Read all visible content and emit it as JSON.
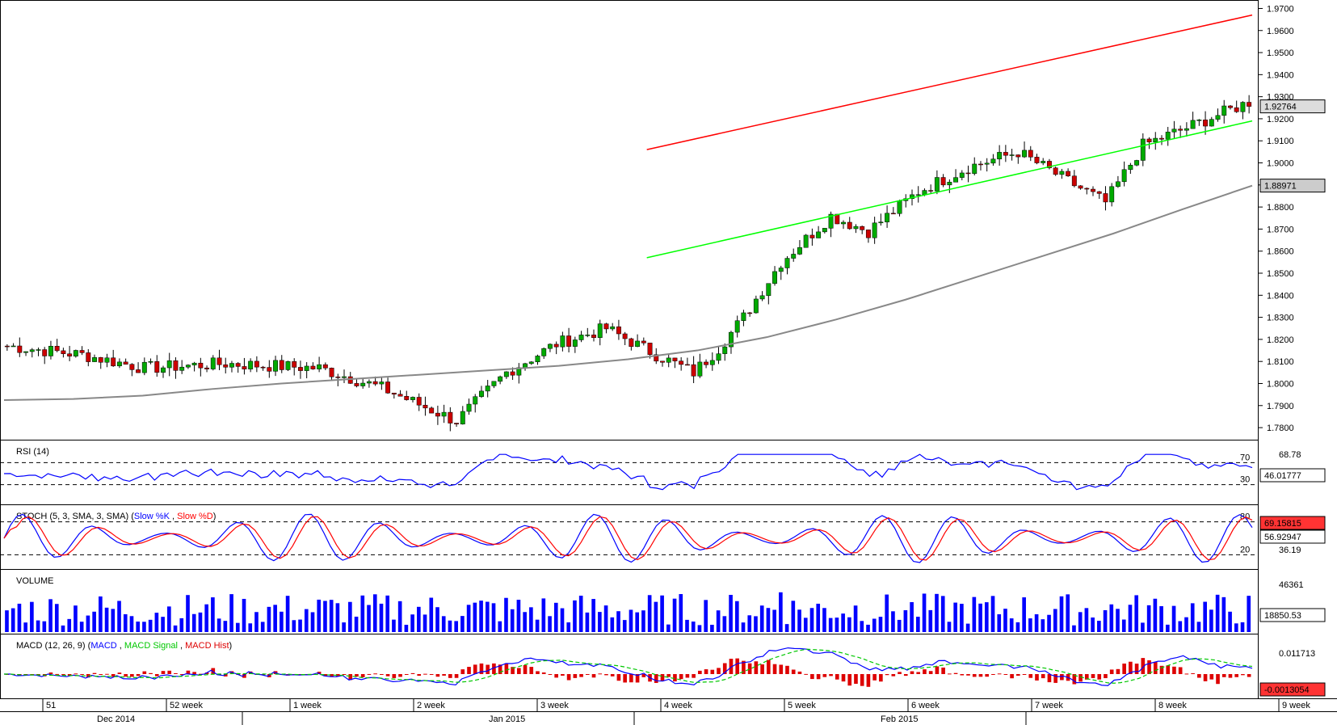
{
  "chart_data": {
    "type": "candlestick",
    "y_axis_ticks": [
      "1.9700",
      "1.9600",
      "1.9500",
      "1.9400",
      "1.9300",
      "1.9200",
      "1.9100",
      "1.9000",
      "1.8900",
      "1.8800",
      "1.8700",
      "1.8600",
      "1.8500",
      "1.8400",
      "1.8300",
      "1.8200",
      "1.8100",
      "1.8000",
      "1.7900",
      "1.7800"
    ],
    "ylim": [
      1.776,
      1.972
    ],
    "price": {
      "start": 1.817,
      "n": 200,
      "seed": 7,
      "waypoints": [
        [
          0,
          1.817
        ],
        [
          12,
          1.813
        ],
        [
          22,
          1.807
        ],
        [
          35,
          1.809
        ],
        [
          50,
          1.807
        ],
        [
          60,
          1.798
        ],
        [
          68,
          1.788
        ],
        [
          72,
          1.783
        ],
        [
          80,
          1.805
        ],
        [
          88,
          1.818
        ],
        [
          96,
          1.825
        ],
        [
          104,
          1.813
        ],
        [
          110,
          1.805
        ],
        [
          114,
          1.816
        ],
        [
          118,
          1.83
        ],
        [
          124,
          1.855
        ],
        [
          132,
          1.876
        ],
        [
          138,
          1.869
        ],
        [
          146,
          1.887
        ],
        [
          154,
          1.898
        ],
        [
          162,
          1.905
        ],
        [
          168,
          1.895
        ],
        [
          176,
          1.882
        ],
        [
          182,
          1.908
        ],
        [
          190,
          1.917
        ],
        [
          199,
          1.9276
        ]
      ]
    },
    "current_price_label": "1.92764",
    "ma_label": "1.88971",
    "ma_values": [
      1.7925,
      1.793,
      1.7945,
      1.7975,
      1.8,
      1.802,
      1.804,
      1.806,
      1.808,
      1.811,
      1.815,
      1.821,
      1.829,
      1.838,
      1.848,
      1.858,
      1.868,
      1.879,
      1.8897
    ],
    "channel": {
      "upper": {
        "x": [
          0.515,
          1.0
        ],
        "y": [
          1.906,
          1.967
        ],
        "color": "#FF0000"
      },
      "lower": {
        "x": [
          0.515,
          1.0
        ],
        "y": [
          1.857,
          1.919
        ],
        "color": "#00FF00"
      }
    },
    "x_axis": {
      "week_labels": [
        "51",
        "52 week",
        "1 week",
        "2 week",
        "3 week",
        "4 week",
        "5 week",
        "6 week",
        "7 week",
        "8 week",
        "9 week"
      ],
      "month_labels": [
        "Dec 2014",
        "Jan 2015",
        "Feb 2015"
      ]
    },
    "indicators": {
      "rsi": {
        "title": "RSI (14)",
        "levels": [
          "70",
          "30"
        ],
        "value_label": "46.01777",
        "extra_label": "68.78"
      },
      "stoch": {
        "title_prefix": "STOCH (5, 3, SMA, 3, SMA)",
        "slow_k": "Slow %K",
        "slow_d": "Slow %D",
        "levels": [
          "80",
          "20"
        ],
        "value_label_1": "69.15815",
        "value_label_2": "56.92947",
        "extra_label": "36.19"
      },
      "volume": {
        "title": "VOLUME",
        "top_label": "46361",
        "value_label": "18850.53"
      },
      "macd": {
        "title_prefix": "MACD (12, 26, 9)",
        "macd": "MACD",
        "signal": "MACD Signal",
        "hist": "MACD Hist",
        "top_label": "0.011713",
        "value_label": "-0.0013054"
      }
    },
    "colors": {
      "up": "#00AA00",
      "down": "#CC0000",
      "ma": "#888888",
      "rsi": "#0000FF",
      "stoch_k": "#0000FF",
      "stoch_d": "#FF0000",
      "volume": "#0000FF",
      "macd": "#0000FF",
      "signal": "#00C800",
      "hist": "#DD0000"
    }
  }
}
